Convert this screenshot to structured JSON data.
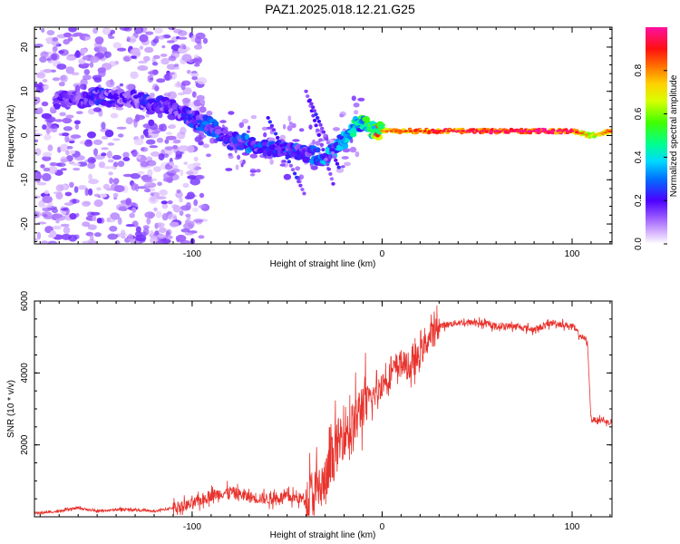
{
  "title": "PAZ1.2025.018.12.21.G25",
  "colors": {
    "snr_line": "#e8322c",
    "spectrogram_low": "#d8b8ff",
    "spectrogram_mid": "#6010e0",
    "background": "#ffffff",
    "frame": "#000000"
  },
  "chart_data": [
    {
      "type": "heatmap",
      "title": "",
      "xlabel": "Height of straight line (km)",
      "ylabel": "Frequency (Hz)",
      "xlim": [
        -183,
        121
      ],
      "ylim": [
        -24.5,
        24.5
      ],
      "xticks": [
        -100,
        0,
        100
      ],
      "xtick_labels": [
        "-100",
        "0",
        "100"
      ],
      "yticks": [
        -20,
        -10,
        0,
        10,
        20
      ],
      "ytick_labels": [
        "-20",
        "-10",
        "0",
        "10",
        "20"
      ],
      "colorbar": {
        "label": "Normalized spectral amplitude",
        "range": [
          0,
          1
        ],
        "ticks": [
          0.0,
          0.2,
          0.4,
          0.6,
          0.8
        ],
        "tick_labels": [
          "0.0",
          "0.2",
          "0.4",
          "0.6",
          "0.8"
        ],
        "colormap": "rainbow"
      },
      "ridge": {
        "x": [
          -160,
          -150,
          -140,
          -130,
          -120,
          -110,
          -100,
          -90,
          -80,
          -70,
          -60,
          -50,
          -40,
          -30,
          -20,
          -15,
          -10,
          -5,
          0,
          10,
          20,
          40,
          60,
          80,
          100,
          110,
          121
        ],
        "frequency": [
          8,
          9,
          8.5,
          8,
          7.5,
          6,
          4,
          2,
          -1,
          -2,
          -3,
          -3,
          -4,
          -5,
          -1,
          2,
          3,
          1,
          1,
          1,
          1,
          1,
          1,
          1,
          1,
          0,
          1
        ],
        "amplitude": [
          0.15,
          0.2,
          0.15,
          0.15,
          0.2,
          0.15,
          0.2,
          0.25,
          0.2,
          0.25,
          0.2,
          0.25,
          0.2,
          0.3,
          0.3,
          0.35,
          0.4,
          0.55,
          0.7,
          0.75,
          0.8,
          0.85,
          0.85,
          0.9,
          0.85,
          0.6,
          0.8
        ]
      }
    },
    {
      "type": "line",
      "title": "",
      "xlabel": "Height of straight line (km)",
      "ylabel": "SNR (10 * v/v)",
      "xlim": [
        -183,
        121
      ],
      "ylim": [
        0,
        6000
      ],
      "xticks": [
        -100,
        0,
        100
      ],
      "xtick_labels": [
        "-100",
        "0",
        "100"
      ],
      "yticks": [
        2000,
        4000,
        6000
      ],
      "ytick_labels": [
        "2000",
        "4000",
        "6000"
      ],
      "series": [
        {
          "x": [
            -183,
            -170,
            -160,
            -150,
            -140,
            -130,
            -120,
            -110,
            -100,
            -90,
            -80,
            -70,
            -60,
            -50,
            -40,
            -30,
            -25,
            -20,
            -15,
            -10,
            -5,
            0,
            5,
            10,
            15,
            20,
            25,
            30,
            40,
            50,
            60,
            70,
            80,
            90,
            100,
            105,
            108,
            110,
            115,
            121
          ],
          "y": [
            100,
            150,
            250,
            150,
            200,
            200,
            150,
            250,
            350,
            600,
            700,
            550,
            500,
            550,
            500,
            900,
            1800,
            2400,
            2500,
            3200,
            3300,
            3700,
            4000,
            4300,
            4100,
            4500,
            5000,
            5300,
            5400,
            5400,
            5300,
            5300,
            5200,
            5400,
            5300,
            5000,
            4900,
            2700,
            2700,
            2600
          ]
        }
      ]
    }
  ]
}
